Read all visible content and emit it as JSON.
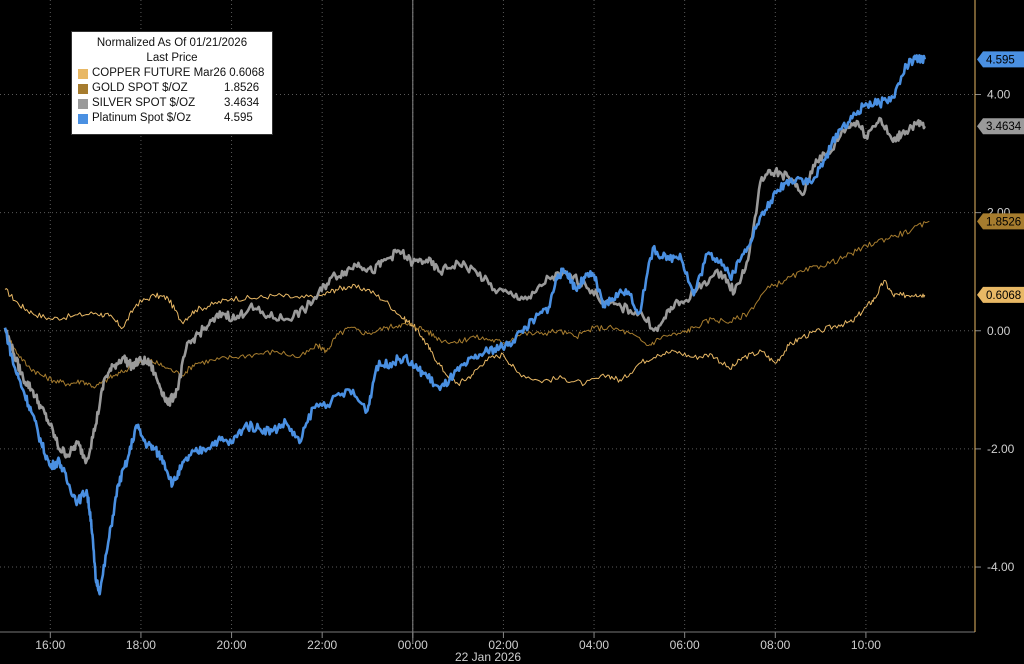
{
  "chart_data": {
    "type": "line",
    "legend": {
      "header": "Normalized As Of 01/21/2026",
      "subheader": "Last Price",
      "placement": "top-left"
    },
    "date_label": "22 Jan 2026",
    "x_ticks": [
      "16:00",
      "18:00",
      "20:00",
      "22:00",
      "00:00",
      "02:00",
      "04:00",
      "06:00",
      "08:00",
      "10:00"
    ],
    "x_tick_hours": [
      1.0,
      3.0,
      5.0,
      7.0,
      9.0,
      11.0,
      13.0,
      15.0,
      17.0,
      19.0
    ],
    "x_range_hours_since_15_00": [
      0,
      20.9
    ],
    "y_ticks": [
      "4.00",
      "2.00",
      "0.00",
      "-2.00",
      "-4.00"
    ],
    "y_tick_values": [
      4,
      2,
      0,
      -2,
      -4
    ],
    "ylim": [
      -5.1,
      5.6
    ],
    "grid": true,
    "series": [
      {
        "name": "COPPER FUTURE Mar26",
        "last_label": "0.6068",
        "last": 0.6068,
        "color": "#e8b865",
        "line_width": 1,
        "points": [
          [
            0,
            0.7
          ],
          [
            0.3,
            0.45
          ],
          [
            0.6,
            0.3
          ],
          [
            1,
            0.2
          ],
          [
            1.5,
            0.25
          ],
          [
            2,
            0.3
          ],
          [
            2.3,
            0.25
          ],
          [
            2.6,
            0.05
          ],
          [
            2.9,
            0.45
          ],
          [
            3.3,
            0.6
          ],
          [
            3.6,
            0.55
          ],
          [
            3.9,
            0.15
          ],
          [
            4.2,
            0.35
          ],
          [
            4.6,
            0.45
          ],
          [
            5,
            0.55
          ],
          [
            5.5,
            0.55
          ],
          [
            6,
            0.6
          ],
          [
            6.5,
            0.55
          ],
          [
            7,
            0.6
          ],
          [
            7.3,
            0.7
          ],
          [
            7.6,
            0.75
          ],
          [
            8,
            0.7
          ],
          [
            8.4,
            0.5
          ],
          [
            8.8,
            0.2
          ],
          [
            9.0,
            0.1
          ],
          [
            9.2,
            -0.1
          ],
          [
            9.4,
            -0.35
          ],
          [
            9.7,
            -0.7
          ],
          [
            10,
            -0.9
          ],
          [
            10.3,
            -0.75
          ],
          [
            10.6,
            -0.5
          ],
          [
            11,
            -0.4
          ],
          [
            11.3,
            -0.7
          ],
          [
            11.8,
            -0.85
          ],
          [
            12.3,
            -0.8
          ],
          [
            12.8,
            -0.9
          ],
          [
            13.3,
            -0.75
          ],
          [
            13.6,
            -0.85
          ],
          [
            14,
            -0.55
          ],
          [
            14.4,
            -0.4
          ],
          [
            14.8,
            -0.35
          ],
          [
            15.2,
            -0.45
          ],
          [
            15.6,
            -0.4
          ],
          [
            16,
            -0.65
          ],
          [
            16.3,
            -0.45
          ],
          [
            16.7,
            -0.35
          ],
          [
            17,
            -0.55
          ],
          [
            17.3,
            -0.25
          ],
          [
            17.6,
            -0.1
          ],
          [
            18,
            0.0
          ],
          [
            18.4,
            0.1
          ],
          [
            18.7,
            0.15
          ],
          [
            19,
            0.4
          ],
          [
            19.2,
            0.55
          ],
          [
            19.4,
            0.85
          ],
          [
            19.6,
            0.6
          ],
          [
            19.8,
            0.6
          ],
          [
            20.1,
            0.62
          ],
          [
            20.3,
            0.6068
          ]
        ]
      },
      {
        "name": "GOLD SPOT $/OZ",
        "last_label": "1.8526",
        "last": 1.8526,
        "color": "#a67c2e",
        "line_width": 1,
        "points": [
          [
            0,
            0.05
          ],
          [
            0.2,
            -0.3
          ],
          [
            0.5,
            -0.6
          ],
          [
            0.8,
            -0.75
          ],
          [
            1.1,
            -0.85
          ],
          [
            1.4,
            -0.9
          ],
          [
            1.7,
            -0.85
          ],
          [
            2,
            -0.95
          ],
          [
            2.3,
            -0.8
          ],
          [
            2.6,
            -0.7
          ],
          [
            2.9,
            -0.55
          ],
          [
            3.2,
            -0.5
          ],
          [
            3.5,
            -0.6
          ],
          [
            3.9,
            -0.75
          ],
          [
            4.2,
            -0.55
          ],
          [
            4.6,
            -0.5
          ],
          [
            5,
            -0.45
          ],
          [
            5.5,
            -0.4
          ],
          [
            6,
            -0.35
          ],
          [
            6.5,
            -0.45
          ],
          [
            6.9,
            -0.25
          ],
          [
            7.1,
            -0.35
          ],
          [
            7.3,
            -0.1
          ],
          [
            7.6,
            0.05
          ],
          [
            8,
            -0.05
          ],
          [
            8.4,
            0.05
          ],
          [
            8.7,
            0.1
          ],
          [
            9,
            0.1
          ],
          [
            9.3,
            0.0
          ],
          [
            9.6,
            -0.15
          ],
          [
            10,
            -0.2
          ],
          [
            10.3,
            -0.1
          ],
          [
            10.7,
            -0.15
          ],
          [
            11,
            -0.2
          ],
          [
            11.4,
            -0.05
          ],
          [
            11.8,
            -0.05
          ],
          [
            12.2,
            0.0
          ],
          [
            12.6,
            -0.1
          ],
          [
            13,
            0.05
          ],
          [
            13.4,
            0.05
          ],
          [
            13.8,
            -0.05
          ],
          [
            14.2,
            -0.25
          ],
          [
            14.5,
            -0.1
          ],
          [
            14.9,
            -0.05
          ],
          [
            15.2,
            0.05
          ],
          [
            15.6,
            0.2
          ],
          [
            16,
            0.15
          ],
          [
            16.4,
            0.3
          ],
          [
            16.8,
            0.7
          ],
          [
            17.2,
            0.85
          ],
          [
            17.6,
            1.0
          ],
          [
            18,
            1.1
          ],
          [
            18.4,
            1.2
          ],
          [
            18.8,
            1.35
          ],
          [
            19.2,
            1.5
          ],
          [
            19.6,
            1.6
          ],
          [
            20,
            1.7
          ],
          [
            20.4,
            1.8526
          ]
        ]
      },
      {
        "name": "SILVER SPOT $/OZ",
        "last_label": "3.4634",
        "last": 3.4634,
        "color": "#9a9a9a",
        "line_width": 2.6,
        "points": [
          [
            0,
            0.05
          ],
          [
            0.2,
            -0.4
          ],
          [
            0.4,
            -0.8
          ],
          [
            0.6,
            -1.0
          ],
          [
            0.8,
            -1.3
          ],
          [
            1,
            -1.6
          ],
          [
            1.2,
            -2.0
          ],
          [
            1.4,
            -2.1
          ],
          [
            1.6,
            -1.9
          ],
          [
            1.8,
            -2.2
          ],
          [
            2.0,
            -1.6
          ],
          [
            2.2,
            -0.8
          ],
          [
            2.4,
            -0.6
          ],
          [
            2.6,
            -0.45
          ],
          [
            2.8,
            -0.6
          ],
          [
            3.0,
            -0.5
          ],
          [
            3.2,
            -0.55
          ],
          [
            3.4,
            -0.9
          ],
          [
            3.6,
            -1.25
          ],
          [
            3.8,
            -1.0
          ],
          [
            4.0,
            -0.3
          ],
          [
            4.2,
            -0.1
          ],
          [
            4.5,
            0.1
          ],
          [
            4.8,
            0.3
          ],
          [
            5.1,
            0.2
          ],
          [
            5.4,
            0.4
          ],
          [
            5.8,
            0.25
          ],
          [
            6.2,
            0.2
          ],
          [
            6.6,
            0.35
          ],
          [
            6.9,
            0.6
          ],
          [
            7.2,
            0.9
          ],
          [
            7.5,
            1.0
          ],
          [
            7.8,
            1.15
          ],
          [
            8.1,
            1.0
          ],
          [
            8.4,
            1.2
          ],
          [
            8.7,
            1.35
          ],
          [
            9.0,
            1.15
          ],
          [
            9.3,
            1.2
          ],
          [
            9.6,
            1.0
          ],
          [
            10.0,
            1.15
          ],
          [
            10.4,
            1.0
          ],
          [
            10.8,
            0.7
          ],
          [
            11.2,
            0.6
          ],
          [
            11.6,
            0.55
          ],
          [
            12.0,
            0.9
          ],
          [
            12.4,
            0.95
          ],
          [
            12.8,
            0.8
          ],
          [
            13.2,
            0.5
          ],
          [
            13.6,
            0.4
          ],
          [
            14,
            0.3
          ],
          [
            14.4,
            0.0
          ],
          [
            14.7,
            0.4
          ],
          [
            15.0,
            0.5
          ],
          [
            15.4,
            0.8
          ],
          [
            15.8,
            1.0
          ],
          [
            16.1,
            0.65
          ],
          [
            16.4,
            1.2
          ],
          [
            16.7,
            2.6
          ],
          [
            17,
            2.7
          ],
          [
            17.3,
            2.6
          ],
          [
            17.6,
            2.3
          ],
          [
            17.9,
            2.9
          ],
          [
            18.2,
            3.0
          ],
          [
            18.5,
            3.4
          ],
          [
            18.8,
            3.55
          ],
          [
            19.0,
            3.3
          ],
          [
            19.3,
            3.6
          ],
          [
            19.6,
            3.2
          ],
          [
            19.8,
            3.35
          ],
          [
            20.1,
            3.5
          ],
          [
            20.3,
            3.4634
          ]
        ]
      },
      {
        "name": "Platinum Spot $/Oz",
        "last_label": "4.595",
        "last": 4.595,
        "color": "#4a90e2",
        "line_width": 2.6,
        "points": [
          [
            0,
            0.05
          ],
          [
            0.2,
            -0.6
          ],
          [
            0.4,
            -1.0
          ],
          [
            0.6,
            -1.4
          ],
          [
            0.8,
            -1.9
          ],
          [
            1.0,
            -2.3
          ],
          [
            1.2,
            -2.2
          ],
          [
            1.4,
            -2.6
          ],
          [
            1.6,
            -2.9
          ],
          [
            1.8,
            -2.7
          ],
          [
            1.9,
            -3.2
          ],
          [
            2.0,
            -4.2
          ],
          [
            2.1,
            -4.4
          ],
          [
            2.3,
            -3.5
          ],
          [
            2.5,
            -2.6
          ],
          [
            2.7,
            -2.2
          ],
          [
            2.9,
            -1.6
          ],
          [
            3.1,
            -1.9
          ],
          [
            3.3,
            -2.0
          ],
          [
            3.5,
            -2.2
          ],
          [
            3.7,
            -2.6
          ],
          [
            3.9,
            -2.3
          ],
          [
            4.1,
            -2.1
          ],
          [
            4.4,
            -2.0
          ],
          [
            4.7,
            -1.85
          ],
          [
            5.0,
            -1.9
          ],
          [
            5.3,
            -1.6
          ],
          [
            5.6,
            -1.65
          ],
          [
            5.9,
            -1.7
          ],
          [
            6.2,
            -1.55
          ],
          [
            6.5,
            -1.9
          ],
          [
            6.8,
            -1.3
          ],
          [
            7.2,
            -1.2
          ],
          [
            7.6,
            -1.0
          ],
          [
            8.0,
            -1.35
          ],
          [
            8.2,
            -0.6
          ],
          [
            8.5,
            -0.55
          ],
          [
            8.8,
            -0.45
          ],
          [
            9.1,
            -0.65
          ],
          [
            9.3,
            -0.75
          ],
          [
            9.6,
            -1.0
          ],
          [
            9.9,
            -0.75
          ],
          [
            10.2,
            -0.55
          ],
          [
            10.5,
            -0.4
          ],
          [
            10.8,
            -0.3
          ],
          [
            11.1,
            -0.25
          ],
          [
            11.4,
            0.0
          ],
          [
            11.7,
            0.2
          ],
          [
            12.0,
            0.4
          ],
          [
            12.2,
            0.95
          ],
          [
            12.4,
            1.0
          ],
          [
            12.6,
            0.7
          ],
          [
            12.8,
            0.9
          ],
          [
            13.0,
            0.95
          ],
          [
            13.2,
            0.4
          ],
          [
            13.4,
            0.55
          ],
          [
            13.7,
            0.7
          ],
          [
            14.0,
            0.3
          ],
          [
            14.3,
            1.4
          ],
          [
            14.6,
            1.2
          ],
          [
            14.9,
            1.3
          ],
          [
            15.2,
            0.6
          ],
          [
            15.5,
            1.3
          ],
          [
            15.8,
            1.2
          ],
          [
            16.0,
            0.9
          ],
          [
            16.3,
            1.3
          ],
          [
            16.6,
            1.8
          ],
          [
            16.9,
            2.2
          ],
          [
            17.2,
            2.5
          ],
          [
            17.5,
            2.6
          ],
          [
            17.8,
            2.5
          ],
          [
            18.1,
            2.9
          ],
          [
            18.4,
            3.4
          ],
          [
            18.7,
            3.6
          ],
          [
            19.0,
            3.85
          ],
          [
            19.3,
            3.85
          ],
          [
            19.6,
            3.95
          ],
          [
            19.9,
            4.5
          ],
          [
            20.1,
            4.6
          ],
          [
            20.3,
            4.595
          ]
        ]
      }
    ]
  }
}
